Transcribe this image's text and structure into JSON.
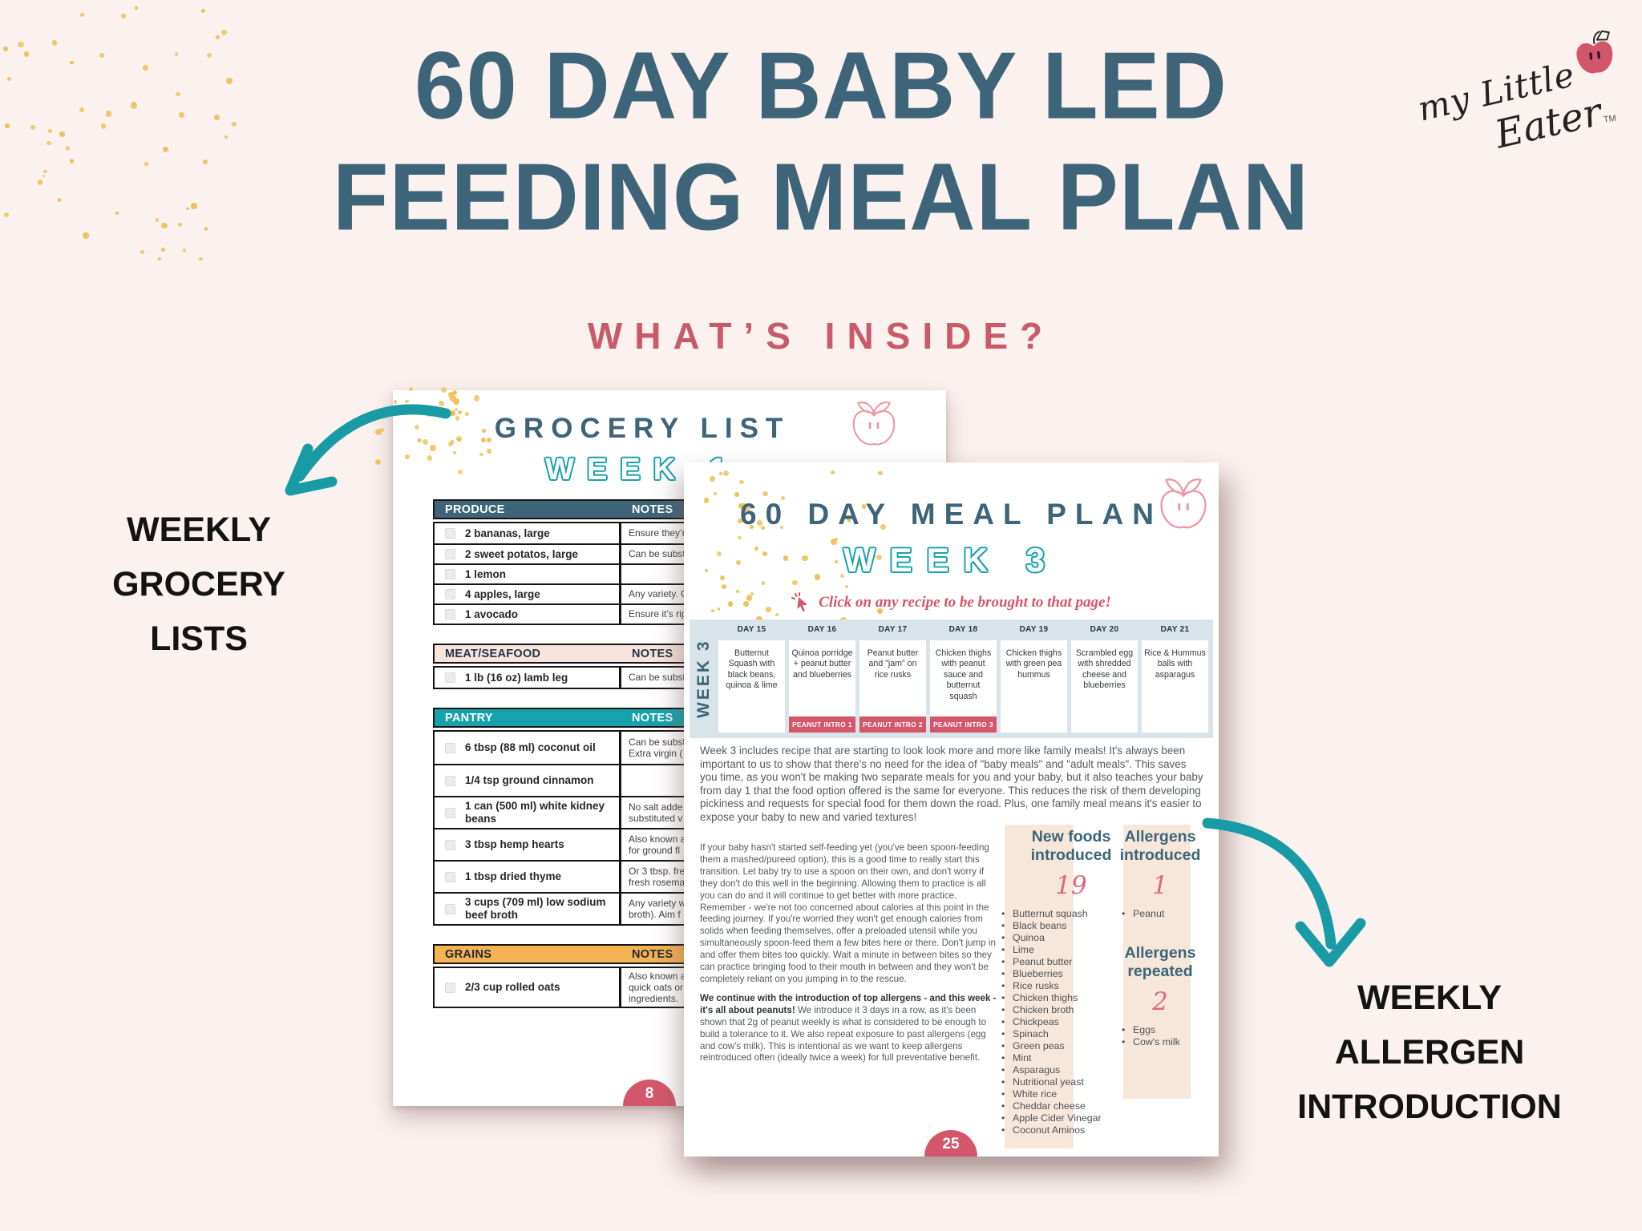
{
  "colors": {
    "background": "#fbf1ee",
    "slate_blue": "#3d6478",
    "accent_teal": "#17a3ad",
    "accent_pink": "#d4566a",
    "subtitle_pink": "#c95a6a",
    "dot_yellow": "#efc055",
    "band_peach": "#f7e7da",
    "days_band_blue": "#d9e4ea",
    "grains_orange": "#f6b353",
    "meat_pink": "#f8e4dc"
  },
  "header": {
    "title_line1": "60 DAY BABY LED",
    "title_line2": "FEEDING MEAL PLAN",
    "subtitle": "WHAT’S INSIDE?",
    "logo": {
      "script_top": "my Little",
      "script_bottom": "Eater",
      "trademark": "TM"
    }
  },
  "annotations": {
    "left_label_lines": [
      "WEEKLY",
      "GROCERY",
      "LISTS"
    ],
    "right_label_lines": [
      "WEEKLY",
      "ALLERGEN",
      "INTRODUCTION"
    ]
  },
  "grocery_page": {
    "title": "GROCERY LIST",
    "week": "WEEK 1",
    "page_number": "8",
    "sections": [
      {
        "name": "PRODUCE",
        "notes_label": "NOTES",
        "header_bg": "#3d6478",
        "header_text": "#ffffff",
        "items": [
          {
            "item": "2 bananas, large",
            "note": "Ensure they’r"
          },
          {
            "item": "2 sweet potatos, large",
            "note": "Can be subst"
          },
          {
            "item": "1 lemon",
            "note": ""
          },
          {
            "item": "4 apples, large",
            "note": "Any variety. C"
          },
          {
            "item": "1 avocado",
            "note": "Ensure it’s rip"
          }
        ]
      },
      {
        "name": "MEAT/SEAFOOD",
        "notes_label": "NOTES",
        "header_bg": "#f8e4dc",
        "header_text": "#1f3346",
        "items": [
          {
            "item": "1 lb (16 oz) lamb leg",
            "note": "Can be subst"
          }
        ]
      },
      {
        "name": "PANTRY",
        "notes_label": "NOTES",
        "header_bg": "#17a3ad",
        "header_text": "#ffffff",
        "items": [
          {
            "item": "6 tbsp (88 ml) coconut oil",
            "note": "Can be subst\nExtra virgin ("
          },
          {
            "item": "1/4 tsp ground cinnamon",
            "note": ""
          },
          {
            "item": "1 can (500 ml) white kidney beans",
            "note": "No salt adde\nsubstituted v"
          },
          {
            "item": "3 tbsp hemp hearts",
            "note": "Also known a\nfor ground fl"
          },
          {
            "item": "1 tbsp dried thyme",
            "note": "Or 3 tbsp. fre\nfresh rosema"
          },
          {
            "item": "3 cups (709 ml) low sodium\nbeef broth",
            "note": "Any variety w\nbroth). Aim f"
          }
        ]
      },
      {
        "name": "GRAINS",
        "notes_label": "NOTES",
        "header_bg": "#f6b353",
        "header_text": "#1f2937",
        "items": [
          {
            "item": "2/3 cup rolled oats",
            "note": "Also known a\nquick oats or\ningredients."
          }
        ]
      }
    ]
  },
  "meal_page": {
    "title": "60 DAY MEAL PLAN",
    "week": "WEEK 3",
    "side_label": "WEEK 3",
    "click_instruction": "Click on any recipe to be brought to that page!",
    "page_number": "25",
    "days": [
      {
        "label": "DAY 15",
        "meal": "Butternut Squash with black beans, quinoa & lime",
        "badge": ""
      },
      {
        "label": "DAY 16",
        "meal": "Quinoa porridge + peanut butter and blueberries",
        "badge": "PEANUT INTRO 1"
      },
      {
        "label": "DAY 17",
        "meal": "Peanut butter and \"jam\" on rice rusks",
        "badge": "PEANUT INTRO 2"
      },
      {
        "label": "DAY 18",
        "meal": "Chicken thighs with peanut sauce and butternut squash",
        "badge": "PEANUT INTRO 3"
      },
      {
        "label": "DAY 19",
        "meal": "Chicken thighs with green pea hummus",
        "badge": ""
      },
      {
        "label": "DAY 20",
        "meal": "Scrambled egg with shredded cheese and blueberries",
        "badge": ""
      },
      {
        "label": "DAY 21",
        "meal": "Rice & Hummus balls with asparagus",
        "badge": ""
      }
    ],
    "paragraphs": {
      "intro": "Week 3 includes recipe that are starting to look look more and more like family meals! It's always been important to us to show that there's no need for the idea of \"baby meals\" and \"adult meals\". This saves you time, as you won't be making two separate meals for you and your baby, but it also teaches your baby from day 1 that the food option offered is the same for everyone. This reduces the risk of them developing pickiness and requests for special food for them down the road. Plus, one family meal means it's easier to expose your baby to new and varied textures!",
      "self_feeding": "If your baby hasn't started self-feeding yet (you've been spoon-feeding them a mashed/pureed option), this is a good time to really start this transition. Let baby try to use a spoon on their own, and don't worry if they don't do this well in the beginning. Allowing them to practice is all you can do and it will continue to get better with more practice. Remember - we're not too concerned about calories at this point in the feeding journey. If you're worried they won't get enough calories from solids when feeding themselves, offer a preloaded utensil while you simultaneously spoon-feed them a few bites here or there. Don't jump in and offer them bites too quickly. Wait a minute in between bites so they can practice bringing food to their mouth in between and they won't be completely reliant on you jumping in to the rescue.",
      "allergen_bold": "We continue with the introduction of top allergens - and this week - it's all about peanuts!",
      "allergen_rest": "We introduce it 3 days in a row, as it's been shown that 2g of peanut weekly is what is considered to be enough to build a tolerance to it. We also repeat exposure to past allergens (egg and cow's milk). This is intentional as we want to keep allergens reintroduced often (ideally twice a week) for full preventative benefit."
    },
    "new_foods": {
      "heading": "New foods introduced",
      "count": "19",
      "items": [
        "Butternut squash",
        "Black beans",
        "Quinoa",
        "Lime",
        "Peanut butter",
        "Blueberries",
        "Rice rusks",
        "Chicken thighs",
        "Chicken broth",
        "Chickpeas",
        "Spinach",
        "Green peas",
        "Mint",
        "Asparagus",
        "Nutritional yeast",
        "White rice",
        "Cheddar cheese",
        "Apple Cider Vinegar",
        "Coconut Aminos"
      ]
    },
    "allergens_introduced": {
      "heading": "Allergens introduced",
      "count": "1",
      "items": [
        "Peanut"
      ]
    },
    "allergens_repeated": {
      "heading": "Allergens repeated",
      "count": "2",
      "items": [
        "Eggs",
        "Cow's milk"
      ]
    }
  }
}
